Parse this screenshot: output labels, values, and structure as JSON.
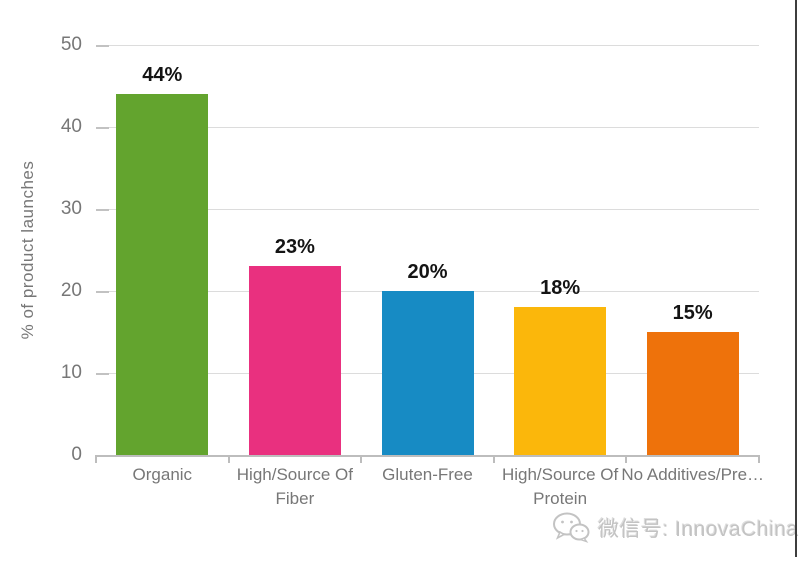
{
  "chart_data": {
    "type": "bar",
    "title": "",
    "xlabel": "",
    "ylabel": "% of product launches",
    "ylim": [
      0,
      50
    ],
    "yticks": [
      0,
      10,
      20,
      30,
      40,
      50
    ],
    "grid": true,
    "legend_position": "none",
    "categories": [
      "Organic",
      "High/Source Of Fiber",
      "Gluten-Free",
      "High/Source Of Protein",
      "No Additives/Pre…"
    ],
    "values": [
      44,
      23,
      20,
      18,
      15
    ],
    "value_labels": [
      "44%",
      "23%",
      "20%",
      "18%",
      "15%"
    ],
    "bar_colors": [
      "#63a42e",
      "#e9307f",
      "#178bc4",
      "#fbb70b",
      "#ee720b"
    ]
  },
  "watermark": {
    "text": "微信号: InnovaChina"
  }
}
